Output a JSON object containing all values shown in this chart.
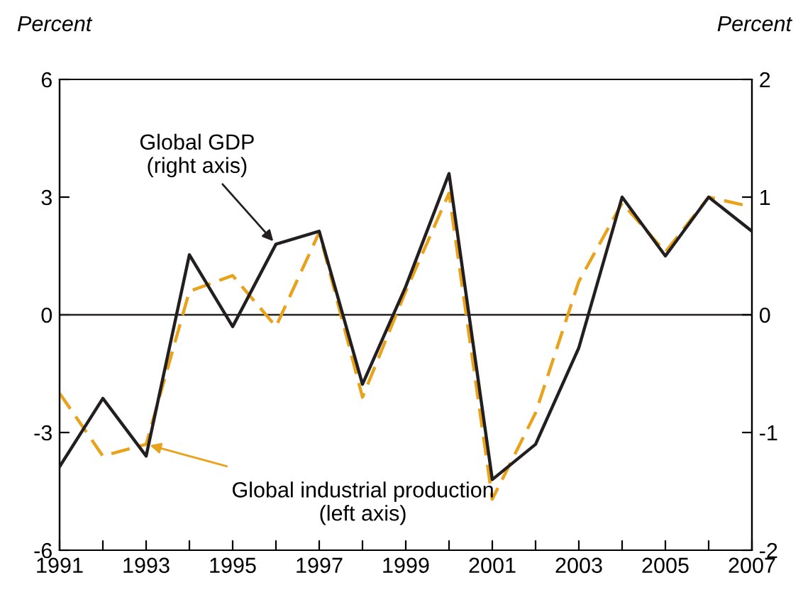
{
  "chart_data": {
    "type": "line",
    "ylabel": "Percent",
    "y2label": "Percent",
    "x": [
      1991,
      1992,
      1993,
      1994,
      1995,
      1996,
      1997,
      1998,
      1999,
      2000,
      2001,
      2002,
      2003,
      2004,
      2005,
      2006,
      2007
    ],
    "series": [
      {
        "axis": "y",
        "color": "#e9a21b",
        "line_style": "dashed",
        "values": [
          -2.0,
          -3.6,
          -3.3,
          0.6,
          1.0,
          -0.3,
          2.1,
          -2.1,
          0.6,
          3.1,
          -4.7,
          -2.5,
          0.85,
          2.85,
          1.6,
          3.0,
          2.75
        ]
      },
      {
        "axis": "y2",
        "color": "#231f20",
        "line_style": "solid",
        "values": [
          -1.29,
          -0.71,
          -1.2,
          0.51,
          -0.1,
          0.6,
          0.71,
          -0.59,
          0.24,
          1.2,
          -1.4,
          -1.1,
          -0.28,
          1.0,
          0.5,
          1.0,
          0.71
        ]
      }
    ],
    "xlim": [
      1991,
      2007
    ],
    "xticks": [
      1991,
      {
        "value": 1992,
        "label": null
      },
      1993,
      {
        "value": 1994,
        "label": null
      },
      1995,
      {
        "value": 1996,
        "label": null
      },
      1997,
      {
        "value": 1998,
        "label": null
      },
      1999,
      {
        "value": 2000,
        "label": null
      },
      2001,
      {
        "value": 2002,
        "label": null
      },
      2003,
      {
        "value": 2004,
        "label": null
      },
      2005,
      {
        "value": 2006,
        "label": null
      },
      2007
    ],
    "ylim": [
      -6,
      6
    ],
    "yticks": [
      -6,
      -3,
      0,
      3,
      6
    ],
    "y2lim": [
      -2,
      2
    ],
    "y2ticks": [
      -2,
      -1,
      0,
      1,
      2
    ],
    "ref_lines": [
      {
        "axis": "y",
        "value": 0,
        "color": "#231f20"
      }
    ],
    "annotations": [
      {
        "text": "Global industrial production\n(left axis)",
        "x": 1993,
        "y": -3.3
      },
      {
        "text": "Global GDP\n(right axis)",
        "x": 1996,
        "y": 1.8
      }
    ],
    "grid": false,
    "legend": false,
    "marker": "none"
  }
}
